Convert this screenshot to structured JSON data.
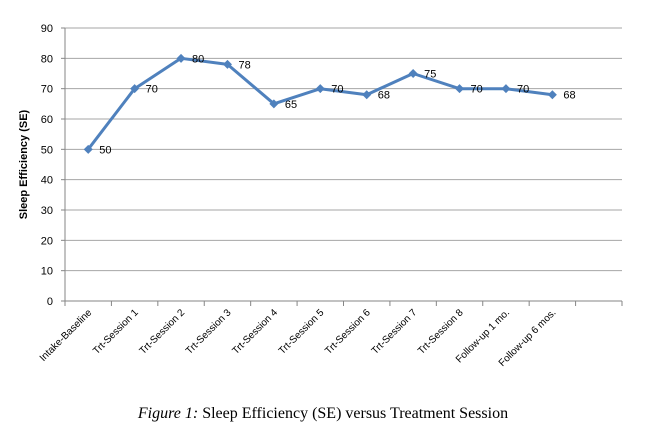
{
  "chart_data": {
    "type": "line",
    "categories": [
      "Intake-Baseline",
      "Trt-Session 1",
      "Trt-Session 2",
      "Trt-Session 3",
      "Trt-Session 4",
      "Trt-Session 5",
      "Trt-Session 6",
      "Trt-Session 7",
      "Trt-Session 8",
      "Follow-up 1 mo.",
      "Follow-up 6 mos."
    ],
    "values": [
      50,
      70,
      80,
      78,
      65,
      70,
      68,
      75,
      70,
      70,
      68
    ],
    "ylabel": "Sleep Efficiency (SE)",
    "ylim": [
      0,
      90
    ],
    "yticks": [
      0,
      10,
      20,
      30,
      40,
      50,
      60,
      70,
      80,
      90
    ],
    "grid": true,
    "line_color": "#4f81bd"
  },
  "caption": {
    "prefix": "Figure 1:",
    "text": " Sleep Efficiency (SE) versus Treatment Session"
  }
}
